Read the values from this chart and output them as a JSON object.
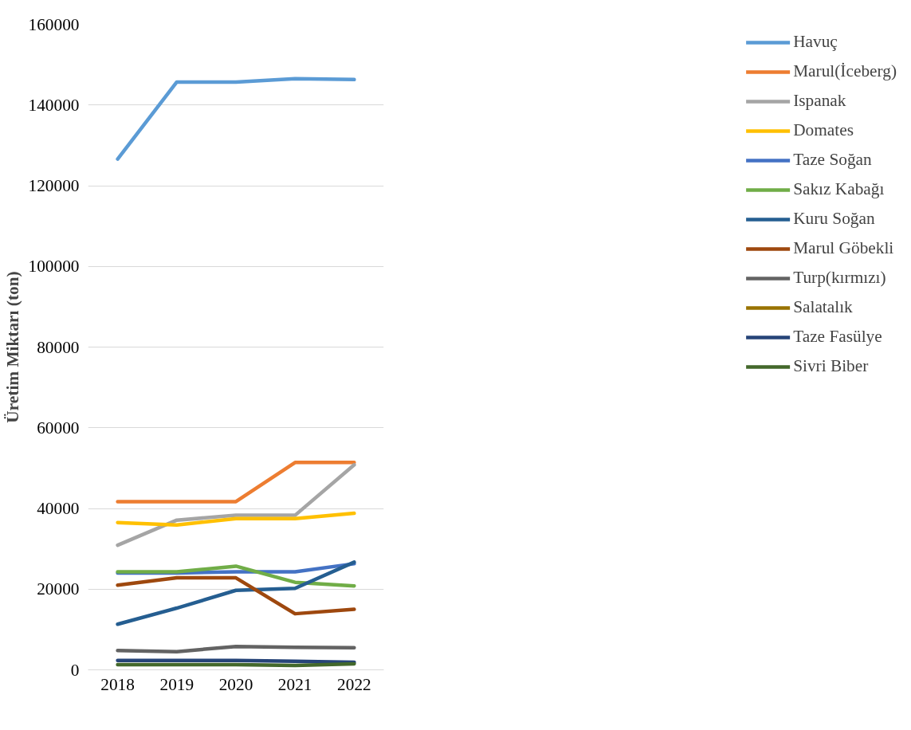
{
  "chart_data": {
    "type": "line",
    "ylabel": "Üretim Miktarı (ton)",
    "categories": [
      "2018",
      "2019",
      "2020",
      "2021",
      "2022"
    ],
    "ylim": [
      0,
      160000
    ],
    "yticks": [
      0,
      20000,
      40000,
      60000,
      80000,
      100000,
      120000,
      140000,
      160000
    ],
    "grid": "y",
    "legend": "right",
    "marker": "none",
    "line_style": "solid",
    "series": [
      {
        "name": "Havuç",
        "color": "#5b9bd5",
        "values": [
          126600,
          145700,
          145700,
          146500,
          146300
        ]
      },
      {
        "name": "Marul(İceberg)",
        "color": "#ed7d31",
        "values": [
          41700,
          41700,
          41700,
          51400,
          51400
        ]
      },
      {
        "name": "Ispanak",
        "color": "#a5a5a5",
        "values": [
          30900,
          37100,
          38300,
          38300,
          50800
        ]
      },
      {
        "name": "Domates",
        "color": "#ffc000",
        "values": [
          36500,
          35900,
          37500,
          37500,
          38800
        ]
      },
      {
        "name": "Taze Soğan",
        "color": "#4472c4",
        "values": [
          24000,
          24000,
          24300,
          24300,
          26300
        ]
      },
      {
        "name": "Sakız Kabağı",
        "color": "#70ad47",
        "values": [
          24300,
          24300,
          25700,
          21700,
          20800
        ]
      },
      {
        "name": "Kuru Soğan",
        "color": "#255e91",
        "values": [
          11300,
          15300,
          19700,
          20200,
          26700
        ]
      },
      {
        "name": "Marul Göbekli",
        "color": "#9e480e",
        "values": [
          21000,
          22800,
          22800,
          13900,
          15000
        ]
      },
      {
        "name": "Turp(kırmızı)",
        "color": "#636363",
        "values": [
          4800,
          4500,
          5800,
          5600,
          5500
        ]
      },
      {
        "name": "Salatalık",
        "color": "#997300",
        "values": [
          null,
          null,
          null,
          null,
          null
        ]
      },
      {
        "name": "Taze Fasülye",
        "color": "#264478",
        "values": [
          2300,
          2300,
          2300,
          2100,
          1900
        ]
      },
      {
        "name": "Sivri Biber",
        "color": "#43682b",
        "values": [
          1300,
          1300,
          1300,
          1100,
          1500
        ]
      }
    ]
  }
}
